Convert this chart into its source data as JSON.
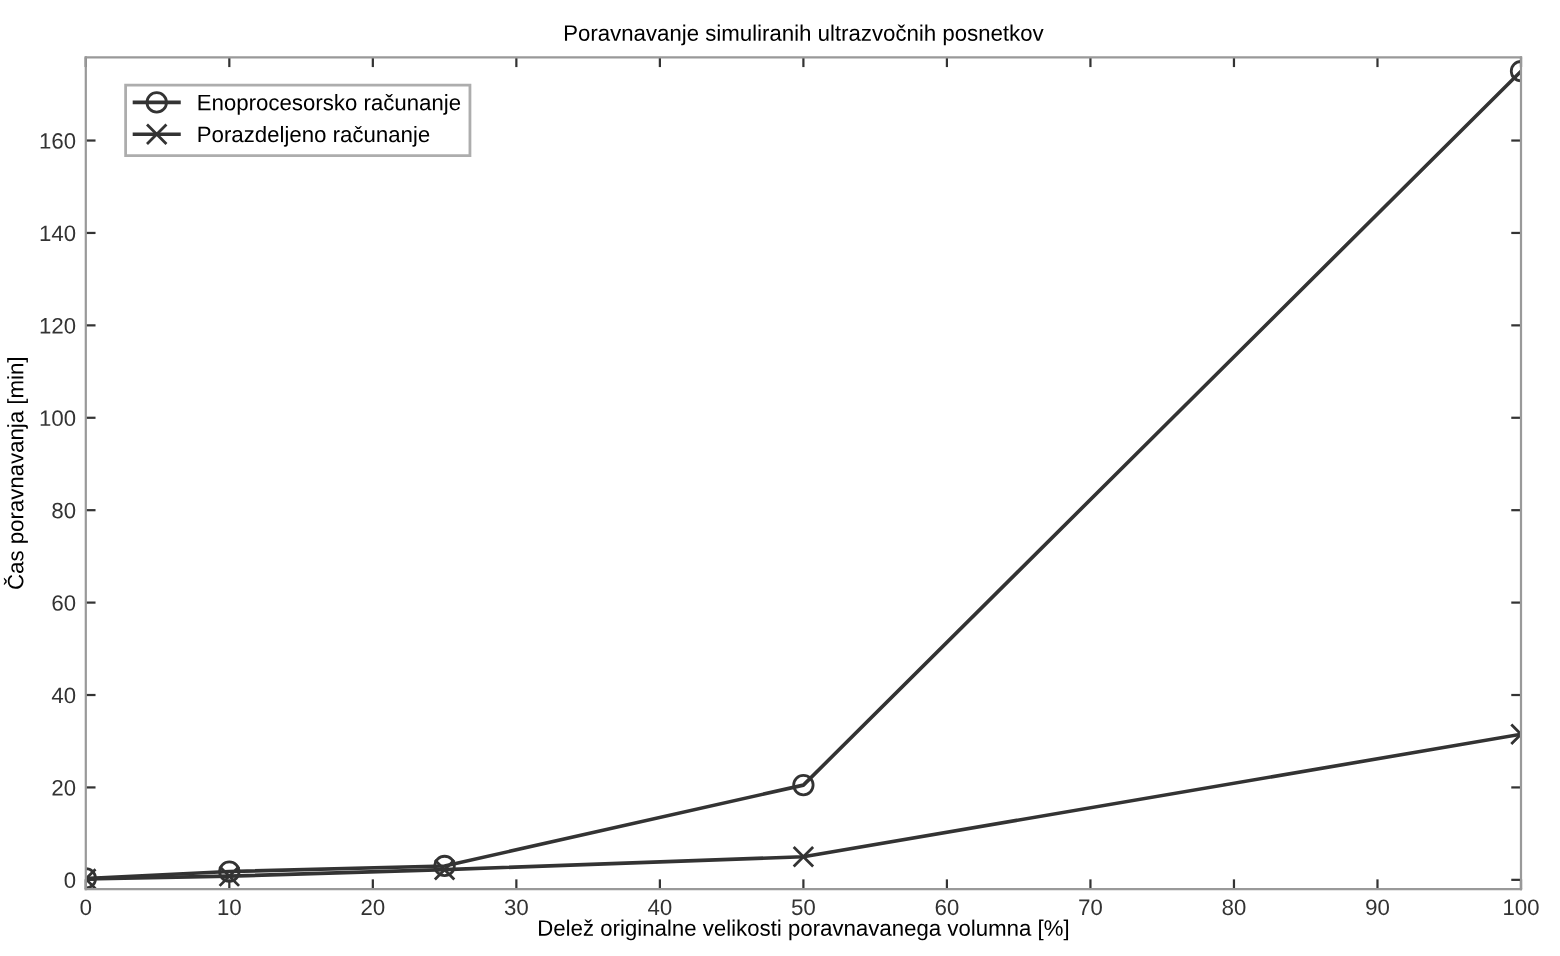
{
  "chart_data": {
    "type": "line",
    "title": "Poravnavanje simuliranih ultrazvočnih posnetkov",
    "xlabel": "Delež originalne velikosti poravnavanega volumna [%]",
    "ylabel": "Čas poravnavanja [min]",
    "x": [
      0,
      10,
      25,
      50,
      100
    ],
    "series": [
      {
        "name": "Enoprocesorsko računanje",
        "color": "#333333",
        "marker": "circle",
        "values": [
          0.3,
          1.8,
          3,
          20.5,
          175
        ]
      },
      {
        "name": "Porazdeljeno računanje",
        "color": "#333333",
        "marker": "cross",
        "values": [
          0.2,
          0.8,
          2.2,
          5,
          31.5
        ]
      }
    ],
    "xlim": [
      0,
      100
    ],
    "xticks": [
      0,
      10,
      20,
      30,
      40,
      50,
      60,
      70,
      80,
      90,
      100
    ],
    "ylim": [
      -2,
      178
    ],
    "yticks": [
      0,
      20,
      40,
      60,
      80,
      100,
      120,
      140,
      160
    ],
    "grid": false,
    "legend": "top left",
    "line_style": "solid"
  }
}
